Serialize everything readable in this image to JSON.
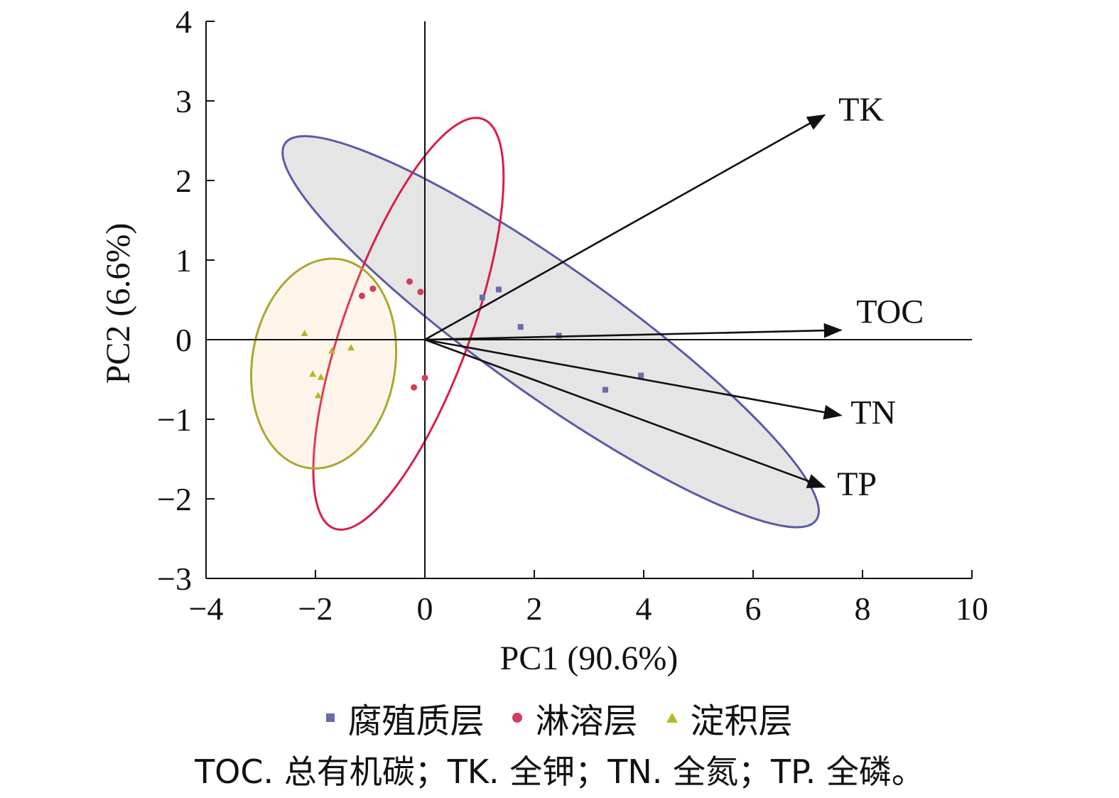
{
  "chart_data": {
    "type": "scatter",
    "subtype": "pca-biplot",
    "xlabel": "PC1 (90.6%)",
    "ylabel": "PC2 (6.6%)",
    "xlim": [
      -4,
      10
    ],
    "ylim": [
      -3,
      4
    ],
    "xticks": [
      -4,
      -2,
      0,
      2,
      4,
      6,
      8,
      10
    ],
    "yticks": [
      -3,
      -2,
      -1,
      0,
      1,
      2,
      3,
      4
    ],
    "xtick_labels": [
      "−4",
      "−2",
      "0",
      "2",
      "4",
      "6",
      "8",
      "10"
    ],
    "ytick_labels": [
      "−3",
      "−2",
      "−1",
      "0",
      "1",
      "2",
      "3",
      "4"
    ],
    "grid": false,
    "legend_position": "bottom",
    "series": [
      {
        "name": "腐殖质层",
        "marker": "square",
        "color": "#6b6baa",
        "ellipse_color": "#5a5aa8",
        "ellipse": {
          "cx": 2.3,
          "cy": 0.1,
          "rx": 5.4,
          "ry": 0.85,
          "angle_deg": -26
        },
        "points": [
          [
            1.05,
            0.53
          ],
          [
            1.35,
            0.63
          ],
          [
            1.75,
            0.16
          ],
          [
            2.45,
            0.05
          ],
          [
            3.3,
            -0.63
          ],
          [
            3.95,
            -0.45
          ]
        ]
      },
      {
        "name": "淋溶层",
        "marker": "circle",
        "color": "#d43a5a",
        "ellipse_color": "#d81e4a",
        "ellipse": {
          "cx": -0.3,
          "cy": 0.2,
          "rx": 1.12,
          "ry": 2.78,
          "angle_deg": -14
        },
        "points": [
          [
            -1.15,
            0.55
          ],
          [
            -0.95,
            0.64
          ],
          [
            -0.28,
            0.73
          ],
          [
            -0.08,
            0.6
          ],
          [
            -0.2,
            -0.6
          ],
          [
            0.0,
            -0.48
          ]
        ]
      },
      {
        "name": "淀积层",
        "marker": "triangle",
        "color": "#b8b428",
        "ellipse_color": "#a8a830",
        "ellipse": {
          "cx": -1.85,
          "cy": -0.3,
          "rx": 1.3,
          "ry": 1.33,
          "angle_deg": -6
        },
        "points": [
          [
            -2.2,
            0.08
          ],
          [
            -1.7,
            -0.14
          ],
          [
            -1.35,
            -0.1
          ],
          [
            -2.05,
            -0.43
          ],
          [
            -1.9,
            -0.47
          ],
          [
            -1.95,
            -0.7
          ]
        ]
      }
    ],
    "vectors": [
      {
        "name": "TK",
        "x": 7.3,
        "y": 2.82
      },
      {
        "name": "TOC",
        "x": 7.6,
        "y": 0.12
      },
      {
        "name": "TN",
        "x": 7.6,
        "y": -0.95
      },
      {
        "name": "TP",
        "x": 7.3,
        "y": -1.85
      }
    ],
    "caption": "TOC. 总有机碳；TK. 全钾；TN. 全氮；TP. 全磷。"
  }
}
